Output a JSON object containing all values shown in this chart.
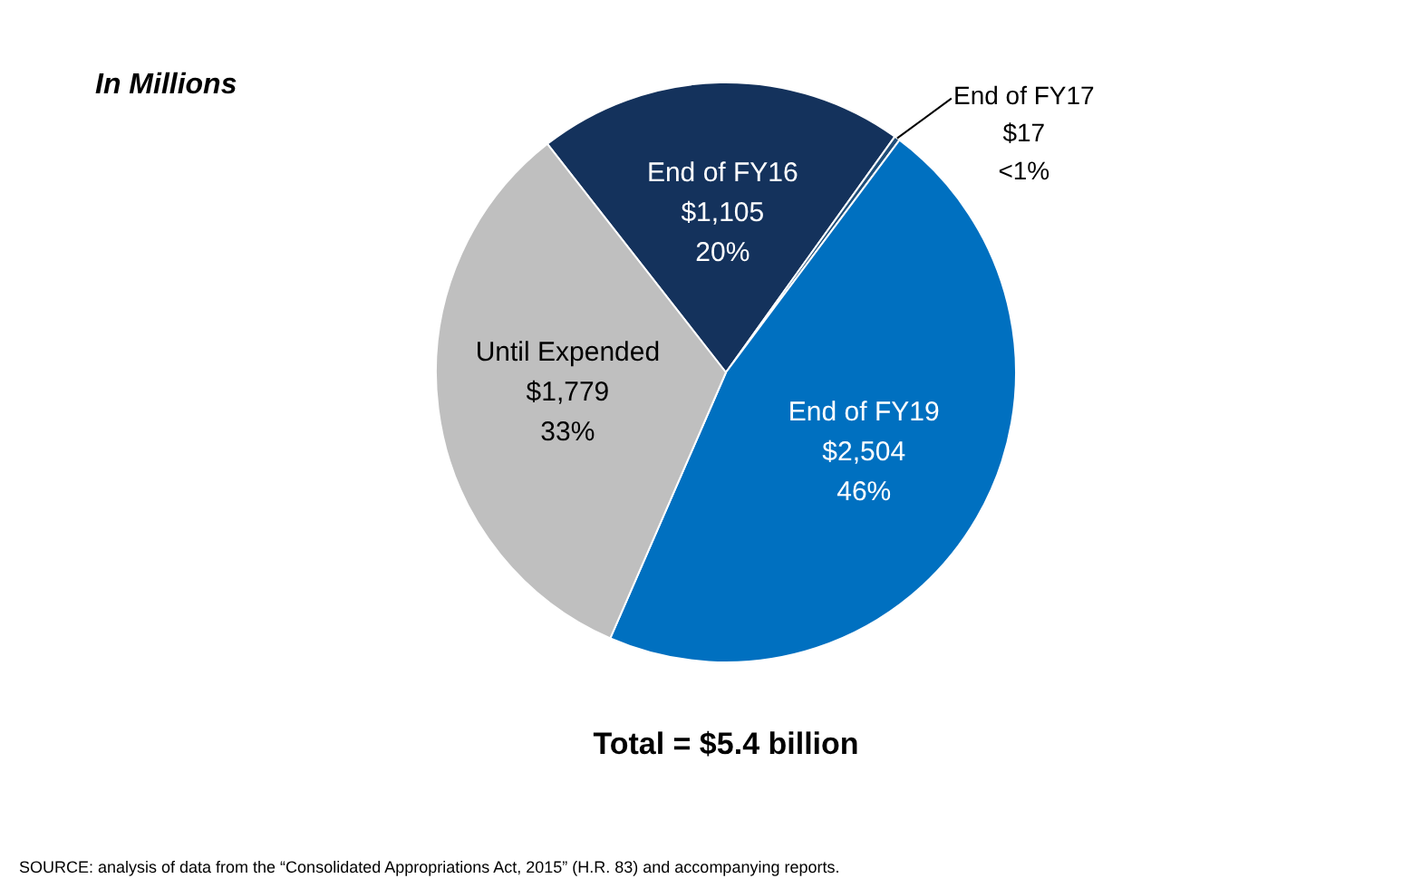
{
  "chart_data": {
    "type": "pie",
    "subtitle": "In Millions",
    "categories": [
      "End of FY16",
      "End of FY17",
      "End of FY19",
      "Until Expended"
    ],
    "values": [
      1105,
      17,
      2504,
      1779
    ],
    "colors": [
      "#14325c",
      "#1f4e79",
      "#0070c0",
      "#bfbfbf"
    ],
    "value_labels": [
      "$1,105\n20%",
      "$17\n<1%",
      "$2,504\n46%",
      "$1,779\n33%"
    ],
    "annotations": [
      "Total = $5.4 billion",
      "SOURCE: analysis of data from the “Consolidated Appropriations Act, 2015” (H.R. 83) and accompanying reports."
    ]
  }
}
